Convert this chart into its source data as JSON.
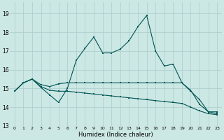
{
  "xlabel": "Humidex (Indice chaleur)",
  "bg_color": "#cce8e4",
  "line_color": "#005555",
  "grid_color": "#aacccc",
  "xlim": [
    -0.5,
    23.5
  ],
  "ylim": [
    13.0,
    19.6
  ],
  "yticks": [
    13,
    14,
    15,
    16,
    17,
    18,
    19
  ],
  "xticks": [
    0,
    1,
    2,
    3,
    4,
    5,
    6,
    7,
    8,
    9,
    10,
    11,
    12,
    13,
    14,
    15,
    16,
    17,
    18,
    19,
    20,
    21,
    22,
    23
  ],
  "curve1_x": [
    0,
    1,
    2,
    3,
    4,
    5,
    6,
    7,
    8,
    9,
    10,
    11,
    12,
    13,
    14,
    15,
    16,
    17,
    18,
    19,
    20,
    21,
    22,
    23
  ],
  "curve1_y": [
    14.85,
    15.3,
    15.5,
    15.05,
    14.65,
    14.25,
    15.0,
    16.5,
    17.15,
    17.75,
    16.9,
    16.9,
    17.1,
    17.55,
    18.3,
    18.9,
    17.0,
    16.2,
    16.3,
    15.3,
    14.9,
    14.15,
    13.75,
    13.75
  ],
  "curve2_x": [
    0,
    1,
    2,
    3,
    4,
    5,
    6,
    7,
    8,
    9,
    10,
    11,
    12,
    13,
    14,
    15,
    16,
    17,
    18,
    19,
    20,
    21,
    22,
    23
  ],
  "curve2_y": [
    14.85,
    15.3,
    15.5,
    15.2,
    15.1,
    15.25,
    15.3,
    15.3,
    15.3,
    15.3,
    15.3,
    15.3,
    15.3,
    15.3,
    15.3,
    15.3,
    15.3,
    15.3,
    15.3,
    15.3,
    14.85,
    14.4,
    13.75,
    13.65
  ],
  "curve3_x": [
    0,
    1,
    2,
    3,
    4,
    5,
    6,
    7,
    8,
    9,
    10,
    11,
    12,
    13,
    14,
    15,
    16,
    17,
    18,
    19,
    20,
    21,
    22,
    23
  ],
  "curve3_y": [
    14.85,
    15.3,
    15.5,
    15.1,
    14.9,
    14.85,
    14.85,
    14.8,
    14.75,
    14.7,
    14.65,
    14.6,
    14.55,
    14.5,
    14.45,
    14.4,
    14.35,
    14.3,
    14.25,
    14.2,
    14.0,
    13.8,
    13.65,
    13.6
  ]
}
